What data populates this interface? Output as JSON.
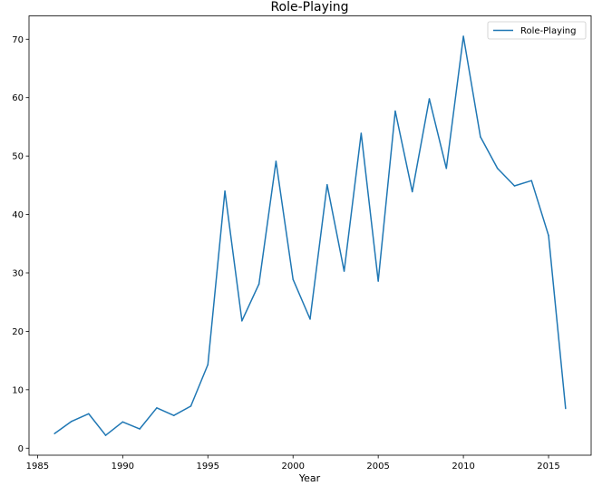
{
  "chart_data": {
    "type": "line",
    "title": "Role-Playing",
    "xlabel": "Year",
    "ylabel": "",
    "xlim": [
      1984.5,
      2017.5
    ],
    "ylim": [
      -1.2,
      74.0
    ],
    "x_ticks": [
      1985,
      1990,
      1995,
      2000,
      2005,
      2010,
      2015
    ],
    "y_ticks": [
      0,
      10,
      20,
      30,
      40,
      50,
      60,
      70
    ],
    "grid": false,
    "legend": {
      "position": "top-right"
    },
    "series": [
      {
        "name": "Role-Playing",
        "color": "#1f77b4",
        "x": [
          1986,
          1987,
          1988,
          1989,
          1990,
          1991,
          1992,
          1993,
          1994,
          1995,
          1996,
          1997,
          1998,
          1999,
          2000,
          2001,
          2002,
          2003,
          2004,
          2005,
          2006,
          2007,
          2008,
          2009,
          2010,
          2011,
          2012,
          2013,
          2014,
          2015,
          2016
        ],
        "values": [
          2.5,
          4.6,
          5.9,
          2.2,
          4.5,
          3.3,
          6.9,
          5.6,
          7.2,
          14.3,
          44.0,
          21.8,
          28.1,
          49.1,
          28.9,
          22.1,
          45.1,
          30.3,
          53.9,
          28.6,
          57.7,
          43.9,
          59.8,
          47.9,
          70.5,
          53.3,
          47.9,
          44.9,
          45.8,
          36.4,
          6.8
        ]
      }
    ]
  }
}
